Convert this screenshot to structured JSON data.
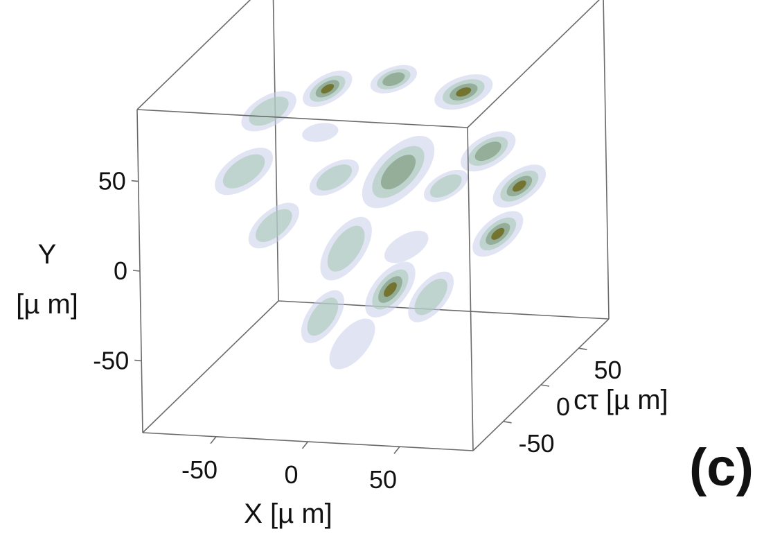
{
  "chart_data": {
    "type": "isosurface-3d",
    "panel_label": "(c)",
    "axes": {
      "x": {
        "label": "X [µ m]",
        "ticks": [
          -50,
          0,
          50
        ],
        "tick_labels": [
          "-50",
          "0",
          "50"
        ]
      },
      "y": {
        "label": "Y",
        "unit": "[µ m]",
        "ticks": [
          -50,
          0,
          50
        ],
        "tick_labels": [
          "-50",
          "0",
          "50"
        ]
      },
      "z": {
        "label": "cτ [µ m]",
        "ticks": [
          -50,
          0,
          50
        ],
        "tick_labels": [
          "-50",
          "0",
          "50"
        ]
      }
    },
    "range": [
      -90,
      90
    ],
    "colors": {
      "outer": "#c8cdea",
      "mid": "#a9c9b8",
      "inner": "#7d9a7c",
      "core": "#6f6a1e",
      "edge": "#6a6a6a"
    },
    "blobs": [
      {
        "x": -32,
        "y": 60,
        "z": 20,
        "size": 0.9,
        "tilt": -30,
        "level": 3
      },
      {
        "x": 0,
        "y": 63,
        "z": 30,
        "size": 0.8,
        "tilt": -20,
        "level": 2
      },
      {
        "x": 38,
        "y": 58,
        "z": 30,
        "size": 1.0,
        "tilt": -20,
        "level": 3
      },
      {
        "x": -60,
        "y": 50,
        "z": 10,
        "size": 1.0,
        "tilt": -30,
        "level": 1
      },
      {
        "x": -28,
        "y": 44,
        "z": 0,
        "size": 0.6,
        "tilt": -10,
        "level": 0
      },
      {
        "x": -70,
        "y": 20,
        "z": 0,
        "size": 1.1,
        "tilt": -35,
        "level": 1
      },
      {
        "x": -25,
        "y": 15,
        "z": 10,
        "size": 0.9,
        "tilt": -30,
        "level": 1
      },
      {
        "x": 10,
        "y": 20,
        "z": 10,
        "size": 1.5,
        "tilt": -45,
        "level": 2
      },
      {
        "x": 55,
        "y": 30,
        "z": 20,
        "size": 1.0,
        "tilt": -30,
        "level": 2
      },
      {
        "x": 40,
        "y": 18,
        "z": 0,
        "size": 0.8,
        "tilt": -30,
        "level": 1
      },
      {
        "x": -50,
        "y": -5,
        "z": -10,
        "size": 1.0,
        "tilt": -40,
        "level": 1
      },
      {
        "x": -15,
        "y": -20,
        "z": 0,
        "size": 1.2,
        "tilt": -55,
        "level": 1
      },
      {
        "x": 20,
        "y": -15,
        "z": -5,
        "size": 0.8,
        "tilt": -30,
        "level": 0
      },
      {
        "x": 78,
        "y": 18,
        "z": 5,
        "size": 1.0,
        "tilt": -35,
        "level": 4
      },
      {
        "x": 70,
        "y": -5,
        "z": -5,
        "size": 1.0,
        "tilt": -40,
        "level": 4
      },
      {
        "x": 15,
        "y": -35,
        "z": -15,
        "size": 1.1,
        "tilt": -50,
        "level": 4
      },
      {
        "x": -20,
        "y": -50,
        "z": -20,
        "size": 1.0,
        "tilt": -55,
        "level": 1
      },
      {
        "x": 35,
        "y": -40,
        "z": -10,
        "size": 1.0,
        "tilt": -50,
        "level": 1
      },
      {
        "x": 0,
        "y": -60,
        "z": -30,
        "size": 1.0,
        "tilt": -50,
        "level": 0
      }
    ]
  }
}
